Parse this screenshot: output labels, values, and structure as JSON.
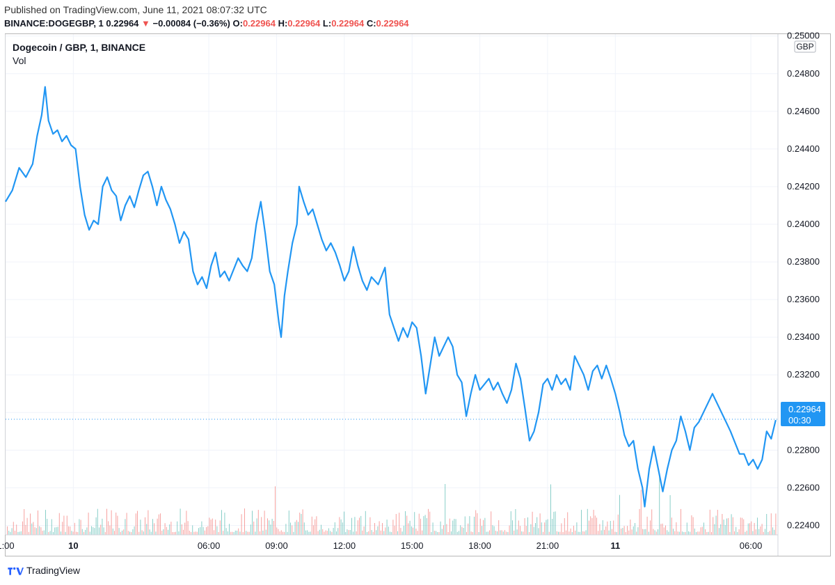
{
  "header": {
    "published": "Published on TradingView.com, June 11, 2021 08:07:32 UTC",
    "symbol_line": "BINANCE:DOGEGBP, 1",
    "last": "0.22964",
    "arrow": "▼",
    "change": "−0.00084 (−0.36%)",
    "o_label": "O:",
    "o_value": "0.22964",
    "h_label": "H:",
    "h_value": "0.22964",
    "l_label": "L:",
    "l_value": "0.22964",
    "c_label": "C:",
    "c_value": "0.22964"
  },
  "legend": {
    "title": "Dogecoin / GBP, 1, BINANCE",
    "vol": "Vol"
  },
  "price_badge": {
    "price": "0.22964",
    "countdown": "00:30"
  },
  "currency": "GBP",
  "footer": {
    "brand": "TradingView"
  },
  "colors": {
    "line": "#2196f3",
    "up": "#26a69a",
    "down": "#ef5350",
    "badge": "#2196f3",
    "grid": "#f0f3fa"
  },
  "chart_data": {
    "type": "line",
    "title": "Dogecoin / GBP, 1, BINANCE",
    "ylim": [
      0.2235,
      0.2501
    ],
    "y_ticks": [
      "0.25000",
      "0.24800",
      "0.24600",
      "0.24400",
      "0.24200",
      "0.24000",
      "0.23800",
      "0.23600",
      "0.23400",
      "0.23200",
      "0.23000",
      "0.22800",
      "0.22600",
      "0.22400"
    ],
    "x_ticks": [
      {
        "label": "1:00",
        "t": 0
      },
      {
        "label": "10",
        "t": 3
      },
      {
        "label": "06:00",
        "t": 9
      },
      {
        "label": "09:00",
        "t": 12
      },
      {
        "label": "12:00",
        "t": 15
      },
      {
        "label": "15:00",
        "t": 18
      },
      {
        "label": "18:00",
        "t": 21
      },
      {
        "label": "21:00",
        "t": 24
      },
      {
        "label": "11",
        "t": 27
      },
      {
        "label": "06:00",
        "t": 33
      }
    ],
    "xlim": [
      0,
      34.2
    ],
    "series": [
      {
        "points": [
          [
            0.0,
            0.2412
          ],
          [
            0.3,
            0.2418
          ],
          [
            0.6,
            0.243
          ],
          [
            0.9,
            0.2425
          ],
          [
            1.2,
            0.2432
          ],
          [
            1.4,
            0.2447
          ],
          [
            1.6,
            0.2458
          ],
          [
            1.75,
            0.2473
          ],
          [
            1.9,
            0.2455
          ],
          [
            2.1,
            0.2448
          ],
          [
            2.3,
            0.245
          ],
          [
            2.5,
            0.2444
          ],
          [
            2.7,
            0.2447
          ],
          [
            2.9,
            0.2442
          ],
          [
            3.1,
            0.244
          ],
          [
            3.3,
            0.242
          ],
          [
            3.5,
            0.2405
          ],
          [
            3.7,
            0.2397
          ],
          [
            3.9,
            0.2402
          ],
          [
            4.1,
            0.24
          ],
          [
            4.3,
            0.242
          ],
          [
            4.5,
            0.2425
          ],
          [
            4.7,
            0.2418
          ],
          [
            4.9,
            0.2415
          ],
          [
            5.1,
            0.2402
          ],
          [
            5.3,
            0.241
          ],
          [
            5.5,
            0.2415
          ],
          [
            5.7,
            0.2409
          ],
          [
            5.9,
            0.2418
          ],
          [
            6.1,
            0.2426
          ],
          [
            6.3,
            0.2428
          ],
          [
            6.5,
            0.242
          ],
          [
            6.7,
            0.241
          ],
          [
            6.9,
            0.242
          ],
          [
            7.1,
            0.2413
          ],
          [
            7.3,
            0.2408
          ],
          [
            7.5,
            0.24
          ],
          [
            7.7,
            0.239
          ],
          [
            7.9,
            0.2396
          ],
          [
            8.1,
            0.2392
          ],
          [
            8.3,
            0.2375
          ],
          [
            8.5,
            0.2368
          ],
          [
            8.7,
            0.2372
          ],
          [
            8.9,
            0.2366
          ],
          [
            9.1,
            0.2378
          ],
          [
            9.3,
            0.2385
          ],
          [
            9.5,
            0.2372
          ],
          [
            9.7,
            0.2375
          ],
          [
            9.9,
            0.237
          ],
          [
            10.1,
            0.2376
          ],
          [
            10.3,
            0.2382
          ],
          [
            10.5,
            0.2378
          ],
          [
            10.7,
            0.2375
          ],
          [
            10.9,
            0.2382
          ],
          [
            11.1,
            0.24
          ],
          [
            11.3,
            0.2412
          ],
          [
            11.5,
            0.2395
          ],
          [
            11.7,
            0.2375
          ],
          [
            11.9,
            0.2368
          ],
          [
            12.1,
            0.2348
          ],
          [
            12.2,
            0.234
          ],
          [
            12.35,
            0.2362
          ],
          [
            12.5,
            0.2375
          ],
          [
            12.7,
            0.239
          ],
          [
            12.9,
            0.24
          ],
          [
            13.0,
            0.242
          ],
          [
            13.2,
            0.2412
          ],
          [
            13.4,
            0.2405
          ],
          [
            13.6,
            0.2408
          ],
          [
            13.8,
            0.24
          ],
          [
            14.0,
            0.2392
          ],
          [
            14.2,
            0.2386
          ],
          [
            14.4,
            0.239
          ],
          [
            14.6,
            0.2385
          ],
          [
            14.8,
            0.2378
          ],
          [
            15.0,
            0.237
          ],
          [
            15.2,
            0.2375
          ],
          [
            15.4,
            0.2388
          ],
          [
            15.6,
            0.2378
          ],
          [
            15.8,
            0.237
          ],
          [
            16.0,
            0.2365
          ],
          [
            16.2,
            0.2372
          ],
          [
            16.5,
            0.2368
          ],
          [
            16.8,
            0.2377
          ],
          [
            17.0,
            0.2352
          ],
          [
            17.2,
            0.2345
          ],
          [
            17.4,
            0.2338
          ],
          [
            17.6,
            0.2345
          ],
          [
            17.8,
            0.234
          ],
          [
            18.0,
            0.2348
          ],
          [
            18.2,
            0.2345
          ],
          [
            18.4,
            0.233
          ],
          [
            18.6,
            0.231
          ],
          [
            18.8,
            0.2325
          ],
          [
            19.0,
            0.234
          ],
          [
            19.2,
            0.233
          ],
          [
            19.4,
            0.2335
          ],
          [
            19.6,
            0.234
          ],
          [
            19.8,
            0.2335
          ],
          [
            20.0,
            0.232
          ],
          [
            20.2,
            0.2316
          ],
          [
            20.4,
            0.2298
          ],
          [
            20.6,
            0.231
          ],
          [
            20.8,
            0.232
          ],
          [
            21.0,
            0.2312
          ],
          [
            21.2,
            0.2315
          ],
          [
            21.4,
            0.2318
          ],
          [
            21.6,
            0.2312
          ],
          [
            21.8,
            0.2316
          ],
          [
            22.0,
            0.231
          ],
          [
            22.2,
            0.2305
          ],
          [
            22.4,
            0.2312
          ],
          [
            22.6,
            0.2326
          ],
          [
            22.8,
            0.2318
          ],
          [
            23.0,
            0.2302
          ],
          [
            23.2,
            0.2285
          ],
          [
            23.4,
            0.229
          ],
          [
            23.6,
            0.23
          ],
          [
            23.8,
            0.2315
          ],
          [
            24.0,
            0.2318
          ],
          [
            24.2,
            0.2312
          ],
          [
            24.4,
            0.232
          ],
          [
            24.6,
            0.2315
          ],
          [
            24.8,
            0.2318
          ],
          [
            25.0,
            0.2312
          ],
          [
            25.2,
            0.233
          ],
          [
            25.4,
            0.2325
          ],
          [
            25.6,
            0.232
          ],
          [
            25.8,
            0.2312
          ],
          [
            26.0,
            0.2322
          ],
          [
            26.2,
            0.2325
          ],
          [
            26.4,
            0.2318
          ],
          [
            26.6,
            0.2325
          ],
          [
            26.8,
            0.2318
          ],
          [
            27.0,
            0.231
          ],
          [
            27.2,
            0.23
          ],
          [
            27.4,
            0.2288
          ],
          [
            27.6,
            0.2282
          ],
          [
            27.8,
            0.2285
          ],
          [
            28.0,
            0.227
          ],
          [
            28.2,
            0.226
          ],
          [
            28.3,
            0.225
          ],
          [
            28.5,
            0.227
          ],
          [
            28.7,
            0.2282
          ],
          [
            28.9,
            0.227
          ],
          [
            29.1,
            0.2258
          ],
          [
            29.3,
            0.227
          ],
          [
            29.5,
            0.228
          ],
          [
            29.7,
            0.2285
          ],
          [
            29.9,
            0.2298
          ],
          [
            30.1,
            0.229
          ],
          [
            30.3,
            0.228
          ],
          [
            30.5,
            0.2292
          ],
          [
            30.7,
            0.2295
          ],
          [
            30.9,
            0.23
          ],
          [
            31.1,
            0.2305
          ],
          [
            31.3,
            0.231
          ],
          [
            31.5,
            0.2305
          ],
          [
            31.7,
            0.23
          ],
          [
            31.9,
            0.2295
          ],
          [
            32.1,
            0.229
          ],
          [
            32.3,
            0.2284
          ],
          [
            32.5,
            0.2278
          ],
          [
            32.7,
            0.2278
          ],
          [
            32.9,
            0.2272
          ],
          [
            33.1,
            0.2275
          ],
          [
            33.3,
            0.227
          ],
          [
            33.5,
            0.2275
          ],
          [
            33.7,
            0.229
          ],
          [
            33.9,
            0.2286
          ],
          [
            34.1,
            0.2296
          ]
        ]
      }
    ]
  }
}
